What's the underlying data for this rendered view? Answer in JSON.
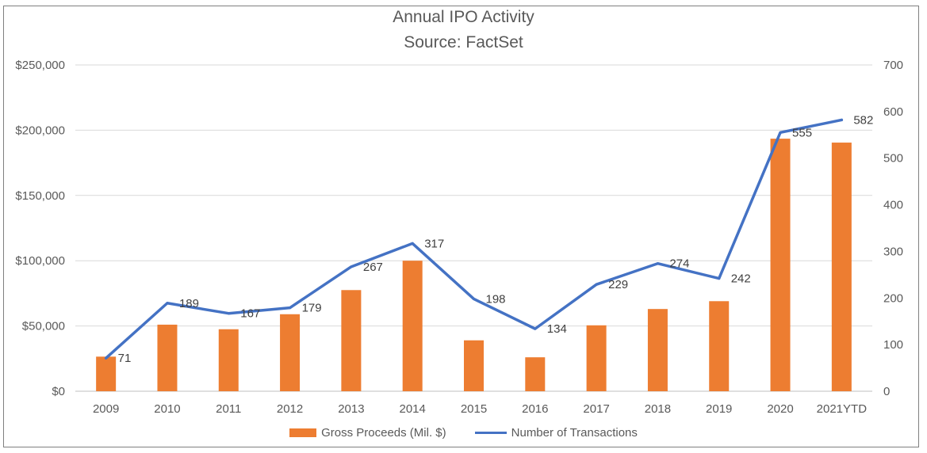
{
  "colors": {
    "bars": "#ED7D31",
    "line": "#4472C4",
    "grid": "#d9d9d9"
  },
  "chart_data": {
    "type": "bar",
    "title": "Annual IPO Activity",
    "subtitle": "Source: FactSet",
    "categories": [
      "2009",
      "2010",
      "2011",
      "2012",
      "2013",
      "2014",
      "2015",
      "2016",
      "2017",
      "2018",
      "2019",
      "2020",
      "2021YTD"
    ],
    "series": [
      {
        "name": "Gross Proceeds (Mil. $)",
        "type": "bar",
        "axis": "left",
        "values": [
          26500,
          51000,
          47500,
          59000,
          77500,
          100000,
          39000,
          26000,
          50500,
          63000,
          69000,
          193500,
          190500
        ]
      },
      {
        "name": "Number of Transactions",
        "type": "line",
        "axis": "right",
        "values": [
          71,
          189,
          167,
          179,
          267,
          317,
          198,
          134,
          229,
          274,
          242,
          555,
          582
        ],
        "labels": [
          "71",
          "189",
          "167",
          "179",
          "267",
          "317",
          "198",
          "134",
          "229",
          "274",
          "242",
          "555",
          "582"
        ]
      }
    ],
    "y_left": {
      "min": 0,
      "max": 250000,
      "ticks": [
        "$0",
        "$50,000",
        "$100,000",
        "$150,000",
        "$200,000",
        "$250,000"
      ]
    },
    "y_right": {
      "min": 0,
      "max": 700,
      "ticks": [
        "0",
        "100",
        "200",
        "300",
        "400",
        "500",
        "600",
        "700"
      ]
    },
    "grid": true,
    "legend_position": "bottom"
  }
}
